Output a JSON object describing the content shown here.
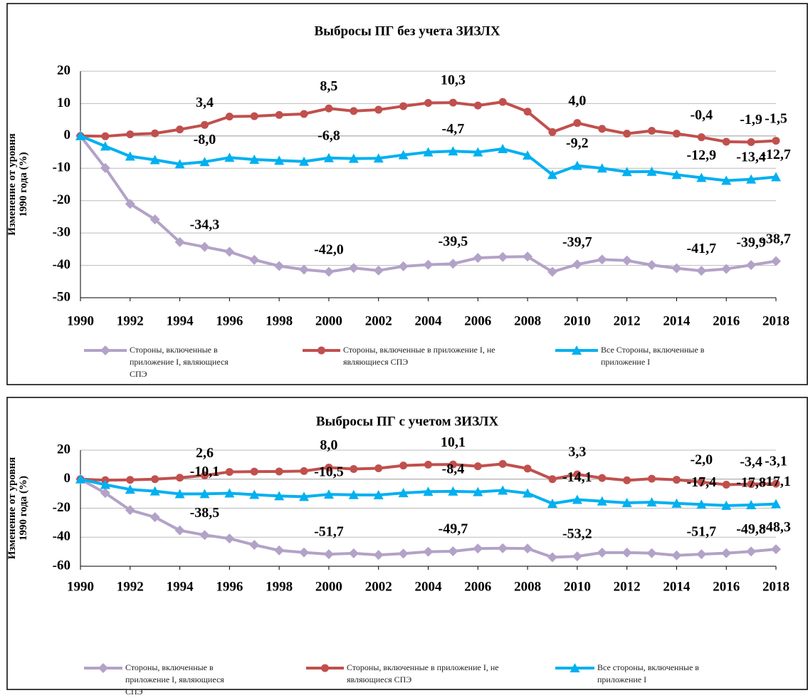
{
  "chart_data": [
    {
      "type": "line",
      "title": "Выбросы ПГ без учета ЗИЗЛХ",
      "y_label": [
        "Изменение от уровня",
        "1990 года (%)"
      ],
      "x": [
        1990,
        1991,
        1992,
        1993,
        1994,
        1995,
        1996,
        1997,
        1998,
        1999,
        2000,
        2001,
        2002,
        2003,
        2004,
        2005,
        2006,
        2007,
        2008,
        2009,
        2010,
        2011,
        2012,
        2013,
        2014,
        2015,
        2016,
        2017,
        2018
      ],
      "xlim": [
        1990,
        2018
      ],
      "xticks": [
        1990,
        1992,
        1994,
        1996,
        1998,
        2000,
        2002,
        2004,
        2006,
        2008,
        2010,
        2012,
        2014,
        2016,
        2018
      ],
      "ylim": [
        -50,
        20
      ],
      "yticks": [
        -50,
        -40,
        -30,
        -20,
        -10,
        0,
        10,
        20
      ],
      "grid": true,
      "series": [
        {
          "name": "Стороны, включенные в приложение I, являющиеся СПЭ",
          "color": "#b3a2c7",
          "marker": "diamond",
          "values": [
            0,
            -9.9,
            -21.0,
            -25.8,
            -32.8,
            -34.3,
            -35.8,
            -38.3,
            -40.2,
            -41.3,
            -42.0,
            -40.8,
            -41.6,
            -40.3,
            -39.8,
            -39.5,
            -37.7,
            -37.4,
            -37.3,
            -42.0,
            -39.7,
            -38.2,
            -38.5,
            -39.9,
            -40.9,
            -41.7,
            -41.1,
            -39.9,
            -38.7
          ],
          "value_labels": [
            null,
            null,
            null,
            null,
            null,
            "-34,3",
            null,
            null,
            null,
            null,
            "-42,0",
            null,
            null,
            null,
            null,
            "-39,5",
            null,
            null,
            null,
            null,
            "-39,7",
            null,
            null,
            null,
            null,
            "-41,7",
            null,
            "-39,9",
            "-38,7"
          ]
        },
        {
          "name": "Стороны, включенные в приложение I, не являющиеся СПЭ",
          "color": "#c0504d",
          "marker": "circle",
          "values": [
            0,
            -0.1,
            0.5,
            0.8,
            2.0,
            3.4,
            6.0,
            6.1,
            6.5,
            6.8,
            8.5,
            7.7,
            8.1,
            9.2,
            10.2,
            10.3,
            9.4,
            10.5,
            7.5,
            1.2,
            4.0,
            2.2,
            0.7,
            1.6,
            0.7,
            -0.4,
            -1.8,
            -1.9,
            -1.5
          ],
          "value_labels": [
            null,
            null,
            null,
            null,
            null,
            "3,4",
            null,
            null,
            null,
            null,
            "8,5",
            null,
            null,
            null,
            null,
            "10,3",
            null,
            null,
            null,
            null,
            "4,0",
            null,
            null,
            null,
            null,
            "-0,4",
            null,
            "-1,9",
            "-1,5"
          ]
        },
        {
          "name": "Все Стороны, включенные в приложение I",
          "color": "#00b0f0",
          "marker": "triangle",
          "values": [
            0,
            -3.2,
            -6.3,
            -7.4,
            -8.7,
            -8.0,
            -6.7,
            -7.3,
            -7.6,
            -7.9,
            -6.8,
            -7.0,
            -6.9,
            -5.9,
            -5.0,
            -4.7,
            -5.0,
            -4.0,
            -6.0,
            -12.0,
            -9.2,
            -10.0,
            -11.1,
            -11.0,
            -12.0,
            -12.9,
            -13.8,
            -13.4,
            -12.7
          ],
          "value_labels": [
            null,
            null,
            null,
            null,
            null,
            "-8,0",
            null,
            null,
            null,
            null,
            "-6,8",
            null,
            null,
            null,
            null,
            "-4,7",
            null,
            null,
            null,
            null,
            "-9,2",
            null,
            null,
            null,
            null,
            "-12,9",
            null,
            "-13,4",
            "-12,7"
          ]
        }
      ]
    },
    {
      "type": "line",
      "title": "Выбросы ПГ с учетом ЗИЗЛХ",
      "y_label": [
        "Изменение от уровня",
        "1990 года (%)"
      ],
      "x": [
        1990,
        1991,
        1992,
        1993,
        1994,
        1995,
        1996,
        1997,
        1998,
        1999,
        2000,
        2001,
        2002,
        2003,
        2004,
        2005,
        2006,
        2007,
        2008,
        2009,
        2010,
        2011,
        2012,
        2013,
        2014,
        2015,
        2016,
        2017,
        2018
      ],
      "xlim": [
        1990,
        2018
      ],
      "xticks": [
        1990,
        1992,
        1994,
        1996,
        1998,
        2000,
        2002,
        2004,
        2006,
        2008,
        2010,
        2012,
        2014,
        2016,
        2018
      ],
      "ylim": [
        -60,
        20
      ],
      "yticks": [
        -60,
        -40,
        -20,
        0,
        20
      ],
      "grid": true,
      "series": [
        {
          "name": "Стороны, включенные в приложение I, являющиеся СПЭ",
          "color": "#b3a2c7",
          "marker": "diamond",
          "values": [
            0,
            -9.6,
            -21.3,
            -26.2,
            -35.3,
            -38.5,
            -40.9,
            -45.3,
            -49.1,
            -50.5,
            -51.7,
            -51.1,
            -52.2,
            -51.3,
            -50.0,
            -49.7,
            -47.8,
            -47.6,
            -47.8,
            -53.8,
            -53.2,
            -50.6,
            -50.6,
            -51.0,
            -52.5,
            -51.7,
            -51.0,
            -49.8,
            -48.3
          ],
          "value_labels": [
            null,
            null,
            null,
            null,
            null,
            "-38,5",
            null,
            null,
            null,
            null,
            "-51,7",
            null,
            null,
            null,
            null,
            "-49,7",
            null,
            null,
            null,
            null,
            "-53,2",
            null,
            null,
            null,
            null,
            "-51,7",
            null,
            "-49,8",
            "-48,3"
          ]
        },
        {
          "name": "Стороны, включенные в приложение I, не являющиеся СПЭ",
          "color": "#c0504d",
          "marker": "circle",
          "values": [
            0,
            -0.7,
            -0.5,
            0,
            1.0,
            2.6,
            5.0,
            5.2,
            5.3,
            5.6,
            8.0,
            7.0,
            7.5,
            9.4,
            10.0,
            10.1,
            8.9,
            10.5,
            7.3,
            0,
            3.3,
            0.8,
            -0.8,
            0.3,
            -0.4,
            -2.0,
            -3.8,
            -3.4,
            -3.1
          ],
          "value_labels": [
            null,
            null,
            null,
            null,
            null,
            "2,6",
            null,
            null,
            null,
            null,
            "8,0",
            null,
            null,
            null,
            null,
            "10,1",
            null,
            null,
            null,
            null,
            "3,3",
            null,
            null,
            null,
            null,
            "-2,0",
            null,
            "-3,4",
            "-3,1"
          ]
        },
        {
          "name": "Все стороны, включенные в приложение I",
          "color": "#00b0f0",
          "marker": "triangle",
          "values": [
            0,
            -3.8,
            -7.1,
            -8.3,
            -10.2,
            -10.1,
            -9.7,
            -10.7,
            -11.6,
            -12.1,
            -10.5,
            -10.8,
            -10.9,
            -9.5,
            -8.6,
            -8.4,
            -8.8,
            -7.7,
            -9.7,
            -16.8,
            -14.1,
            -15.2,
            -16.3,
            -15.9,
            -16.7,
            -17.4,
            -18.2,
            -17.8,
            -17.1
          ],
          "value_labels": [
            null,
            null,
            null,
            null,
            null,
            "-10,1",
            null,
            null,
            null,
            null,
            "-10,5",
            null,
            null,
            null,
            null,
            "-8,4",
            null,
            null,
            null,
            null,
            "-14,1",
            null,
            null,
            null,
            null,
            "-17,4",
            null,
            "-17,8",
            "-17,1"
          ]
        }
      ]
    }
  ]
}
